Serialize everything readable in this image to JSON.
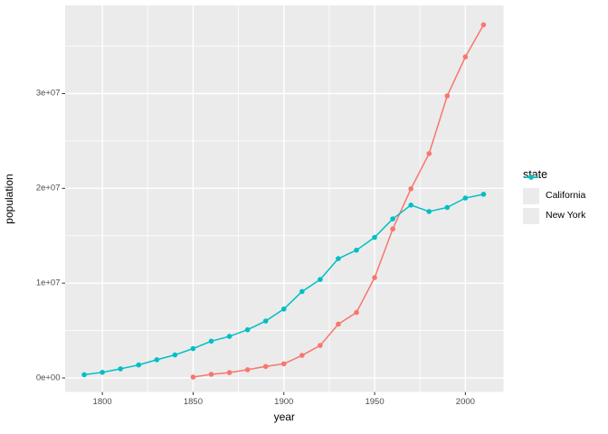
{
  "chart_data": {
    "type": "line",
    "title": "",
    "xlabel": "year",
    "ylabel": "population",
    "legend_title": "state",
    "legend_position": "right",
    "grid": "major-and-minor-white-on-grey-panel",
    "xlim": [
      1779.5,
      2021
    ],
    "ylim": [
      -1480000,
      39300000
    ],
    "x_ticks": [
      {
        "value": 1800,
        "label": "1800"
      },
      {
        "value": 1850,
        "label": "1850"
      },
      {
        "value": 1900,
        "label": "1900"
      },
      {
        "value": 1950,
        "label": "1950"
      },
      {
        "value": 2000,
        "label": "2000"
      }
    ],
    "y_ticks": [
      {
        "value": 0,
        "label": "0e+00"
      },
      {
        "value": 10000000,
        "label": "1e+07"
      },
      {
        "value": 20000000,
        "label": "2e+07"
      },
      {
        "value": 30000000,
        "label": "3e+07"
      }
    ],
    "x_minor": [
      1825,
      1875,
      1925,
      1975
    ],
    "y_minor": [
      5000000,
      15000000,
      25000000,
      35000000
    ],
    "series": [
      {
        "name": "California",
        "color": "#F8766D",
        "x": [
          1850,
          1860,
          1870,
          1880,
          1890,
          1900,
          1910,
          1920,
          1930,
          1940,
          1950,
          1960,
          1970,
          1980,
          1990,
          2000,
          2010
        ],
        "y": [
          92597,
          379994,
          560247,
          864694,
          1213398,
          1485053,
          2377549,
          3426861,
          5677251,
          6907387,
          10586223,
          15717204,
          19953134,
          23667902,
          29760021,
          33871648,
          37253956
        ]
      },
      {
        "name": "New York",
        "color": "#00BFC4",
        "x": [
          1790,
          1800,
          1810,
          1820,
          1830,
          1840,
          1850,
          1860,
          1870,
          1880,
          1890,
          1900,
          1910,
          1920,
          1930,
          1940,
          1950,
          1960,
          1970,
          1980,
          1990,
          2000,
          2010
        ],
        "y": [
          340120,
          589051,
          959049,
          1372812,
          1918608,
          2428921,
          3097394,
          3880735,
          4382759,
          5082871,
          6003174,
          7268894,
          9113614,
          10385227,
          12588066,
          13479142,
          14830192,
          16782304,
          18236967,
          17558072,
          17990455,
          18976457,
          19378102
        ]
      }
    ]
  },
  "colors": {
    "figure_bg": "#FFFFFF",
    "panel_bg": "#EBEBEB",
    "grid": "#FFFFFF",
    "tick_mark": "#333333",
    "tick_label": "#4D4D4D",
    "axis_title": "#000000",
    "legend_key_bg": "#EBEBEB"
  }
}
